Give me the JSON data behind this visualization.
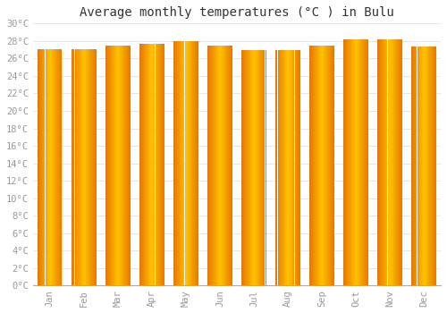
{
  "title": "Average monthly temperatures (°C ) in Bulu",
  "months": [
    "Jan",
    "Feb",
    "Mar",
    "Apr",
    "May",
    "Jun",
    "Jul",
    "Aug",
    "Sep",
    "Oct",
    "Nov",
    "Dec"
  ],
  "values": [
    27.1,
    27.1,
    27.5,
    27.7,
    28.0,
    27.5,
    27.0,
    27.0,
    27.5,
    28.2,
    28.2,
    27.4
  ],
  "ylim": [
    0,
    30
  ],
  "yticks": [
    0,
    2,
    4,
    6,
    8,
    10,
    12,
    14,
    16,
    18,
    20,
    22,
    24,
    26,
    28,
    30
  ],
  "bar_color_center": "#FFC200",
  "bar_color_edge": "#E87800",
  "background_color": "#FFFFFF",
  "plot_bg_color": "#FFFFFF",
  "grid_color": "#DDDDDD",
  "title_fontsize": 10,
  "tick_fontsize": 7.5,
  "tick_color": "#999999",
  "bar_width": 0.72,
  "n_gradient_steps": 50
}
